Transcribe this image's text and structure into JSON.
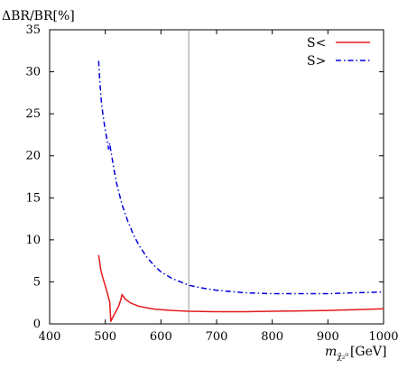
{
  "chart_data": {
    "type": "line",
    "ylabel": "ΔBR/BR[%]",
    "xlabel_math": "m",
    "xlabel_sub": "χ̃₂⁰",
    "xlabel_unit": "[GeV]",
    "xlim": [
      400,
      1000
    ],
    "ylim": [
      0,
      35
    ],
    "xticks": [
      400,
      500,
      600,
      700,
      800,
      900,
      1000
    ],
    "yticks": [
      0,
      5,
      10,
      15,
      20,
      25,
      30,
      35
    ],
    "grid": false,
    "legend_position": "top-right",
    "vertical_line": {
      "x": 650,
      "color": "#999999"
    },
    "series": [
      {
        "name": "S<",
        "color": "#e41a1c",
        "style": "solid",
        "x": [
          488,
          492,
          496,
          500,
          504,
          508,
          510,
          512,
          516,
          520,
          524,
          528,
          530,
          535,
          545,
          560,
          575,
          590,
          600,
          620,
          650,
          700,
          750,
          800,
          850,
          900,
          950,
          1000
        ],
        "y": [
          8.2,
          6.4,
          5.4,
          4.5,
          3.6,
          2.6,
          0.3,
          0.6,
          1.1,
          1.6,
          2.1,
          2.9,
          3.5,
          3.0,
          2.5,
          2.1,
          1.9,
          1.75,
          1.7,
          1.6,
          1.5,
          1.45,
          1.45,
          1.5,
          1.55,
          1.6,
          1.7,
          1.8
        ]
      },
      {
        "name": "S>",
        "color": "#0000dd",
        "style": "dashdot",
        "x": [
          488,
          490,
          493,
          496,
          500,
          504,
          506,
          508,
          510,
          512,
          514,
          520,
          530,
          540,
          550,
          560,
          575,
          590,
          600,
          620,
          650,
          680,
          700,
          750,
          800,
          850,
          900,
          950,
          1000
        ],
        "y": [
          31.3,
          29.0,
          26.5,
          24.8,
          23.0,
          21.6,
          20.8,
          21.5,
          20.6,
          19.8,
          19.0,
          16.8,
          14.2,
          12.3,
          10.7,
          9.4,
          7.9,
          6.8,
          6.2,
          5.4,
          4.6,
          4.2,
          4.0,
          3.7,
          3.6,
          3.6,
          3.6,
          3.7,
          3.8
        ]
      }
    ]
  }
}
